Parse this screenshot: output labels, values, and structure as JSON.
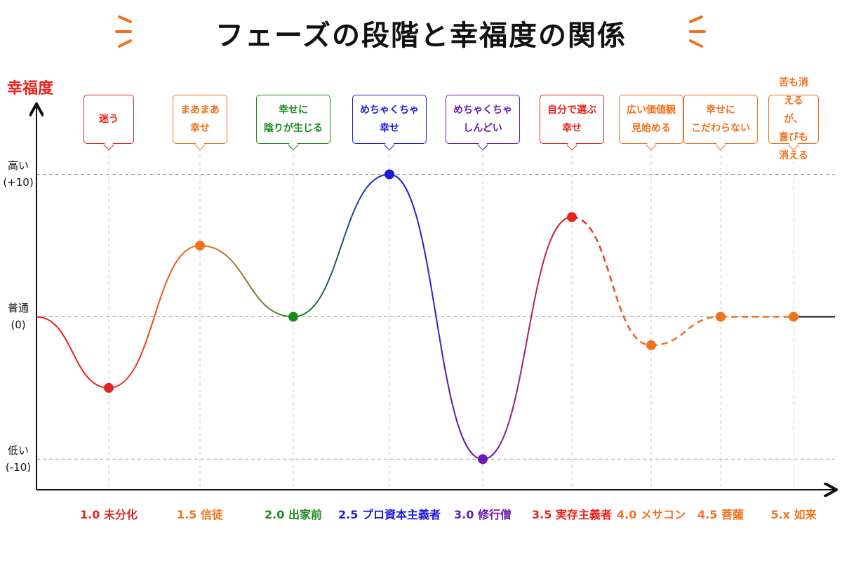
{
  "chart_data": {
    "type": "line",
    "title": "フェーズの段階と幸福度の関係",
    "y_label": "幸福度",
    "categories": [
      "1.0 未分化",
      "1.5 信徒",
      "2.0 出家前",
      "2.5 プロ資本主義者",
      "3.0 修行僧",
      "3.5 実存主義者",
      "4.0 メサコン",
      "4.5 菩薩",
      "5.x 如来"
    ],
    "values": [
      -5,
      5,
      0,
      10,
      -10,
      7,
      -2,
      0,
      0
    ],
    "colors": [
      "#e8231e",
      "#f2711c",
      "#1e8a1e",
      "#1a1ad6",
      "#6a1ab0",
      "#e8231e",
      "#f2711c",
      "#f2711c",
      "#f2711c"
    ],
    "annotations": [
      "迷う",
      "まあまあ\n幸せ",
      "幸せに\n陰りが生じる",
      "めちゃくちゃ\n幸せ",
      "めちゃくちゃ\nしんどい",
      "自分で選ぶ\n幸せ",
      "広い価値観\n見始める",
      "幸せに\nこだわらない",
      "苦も消えるが、\n喜びも消える"
    ],
    "segment_styles": [
      "solid",
      "solid",
      "solid",
      "solid",
      "solid",
      "dashed",
      "dashed",
      "dashed"
    ],
    "ylim": [
      -12,
      15
    ],
    "yticks": [
      {
        "value": 10,
        "label": "高い\n(+10)"
      },
      {
        "value": 0,
        "label": "普通\n(0)"
      },
      {
        "value": -10,
        "label": "低い\n(-10)"
      }
    ],
    "grid": true
  }
}
